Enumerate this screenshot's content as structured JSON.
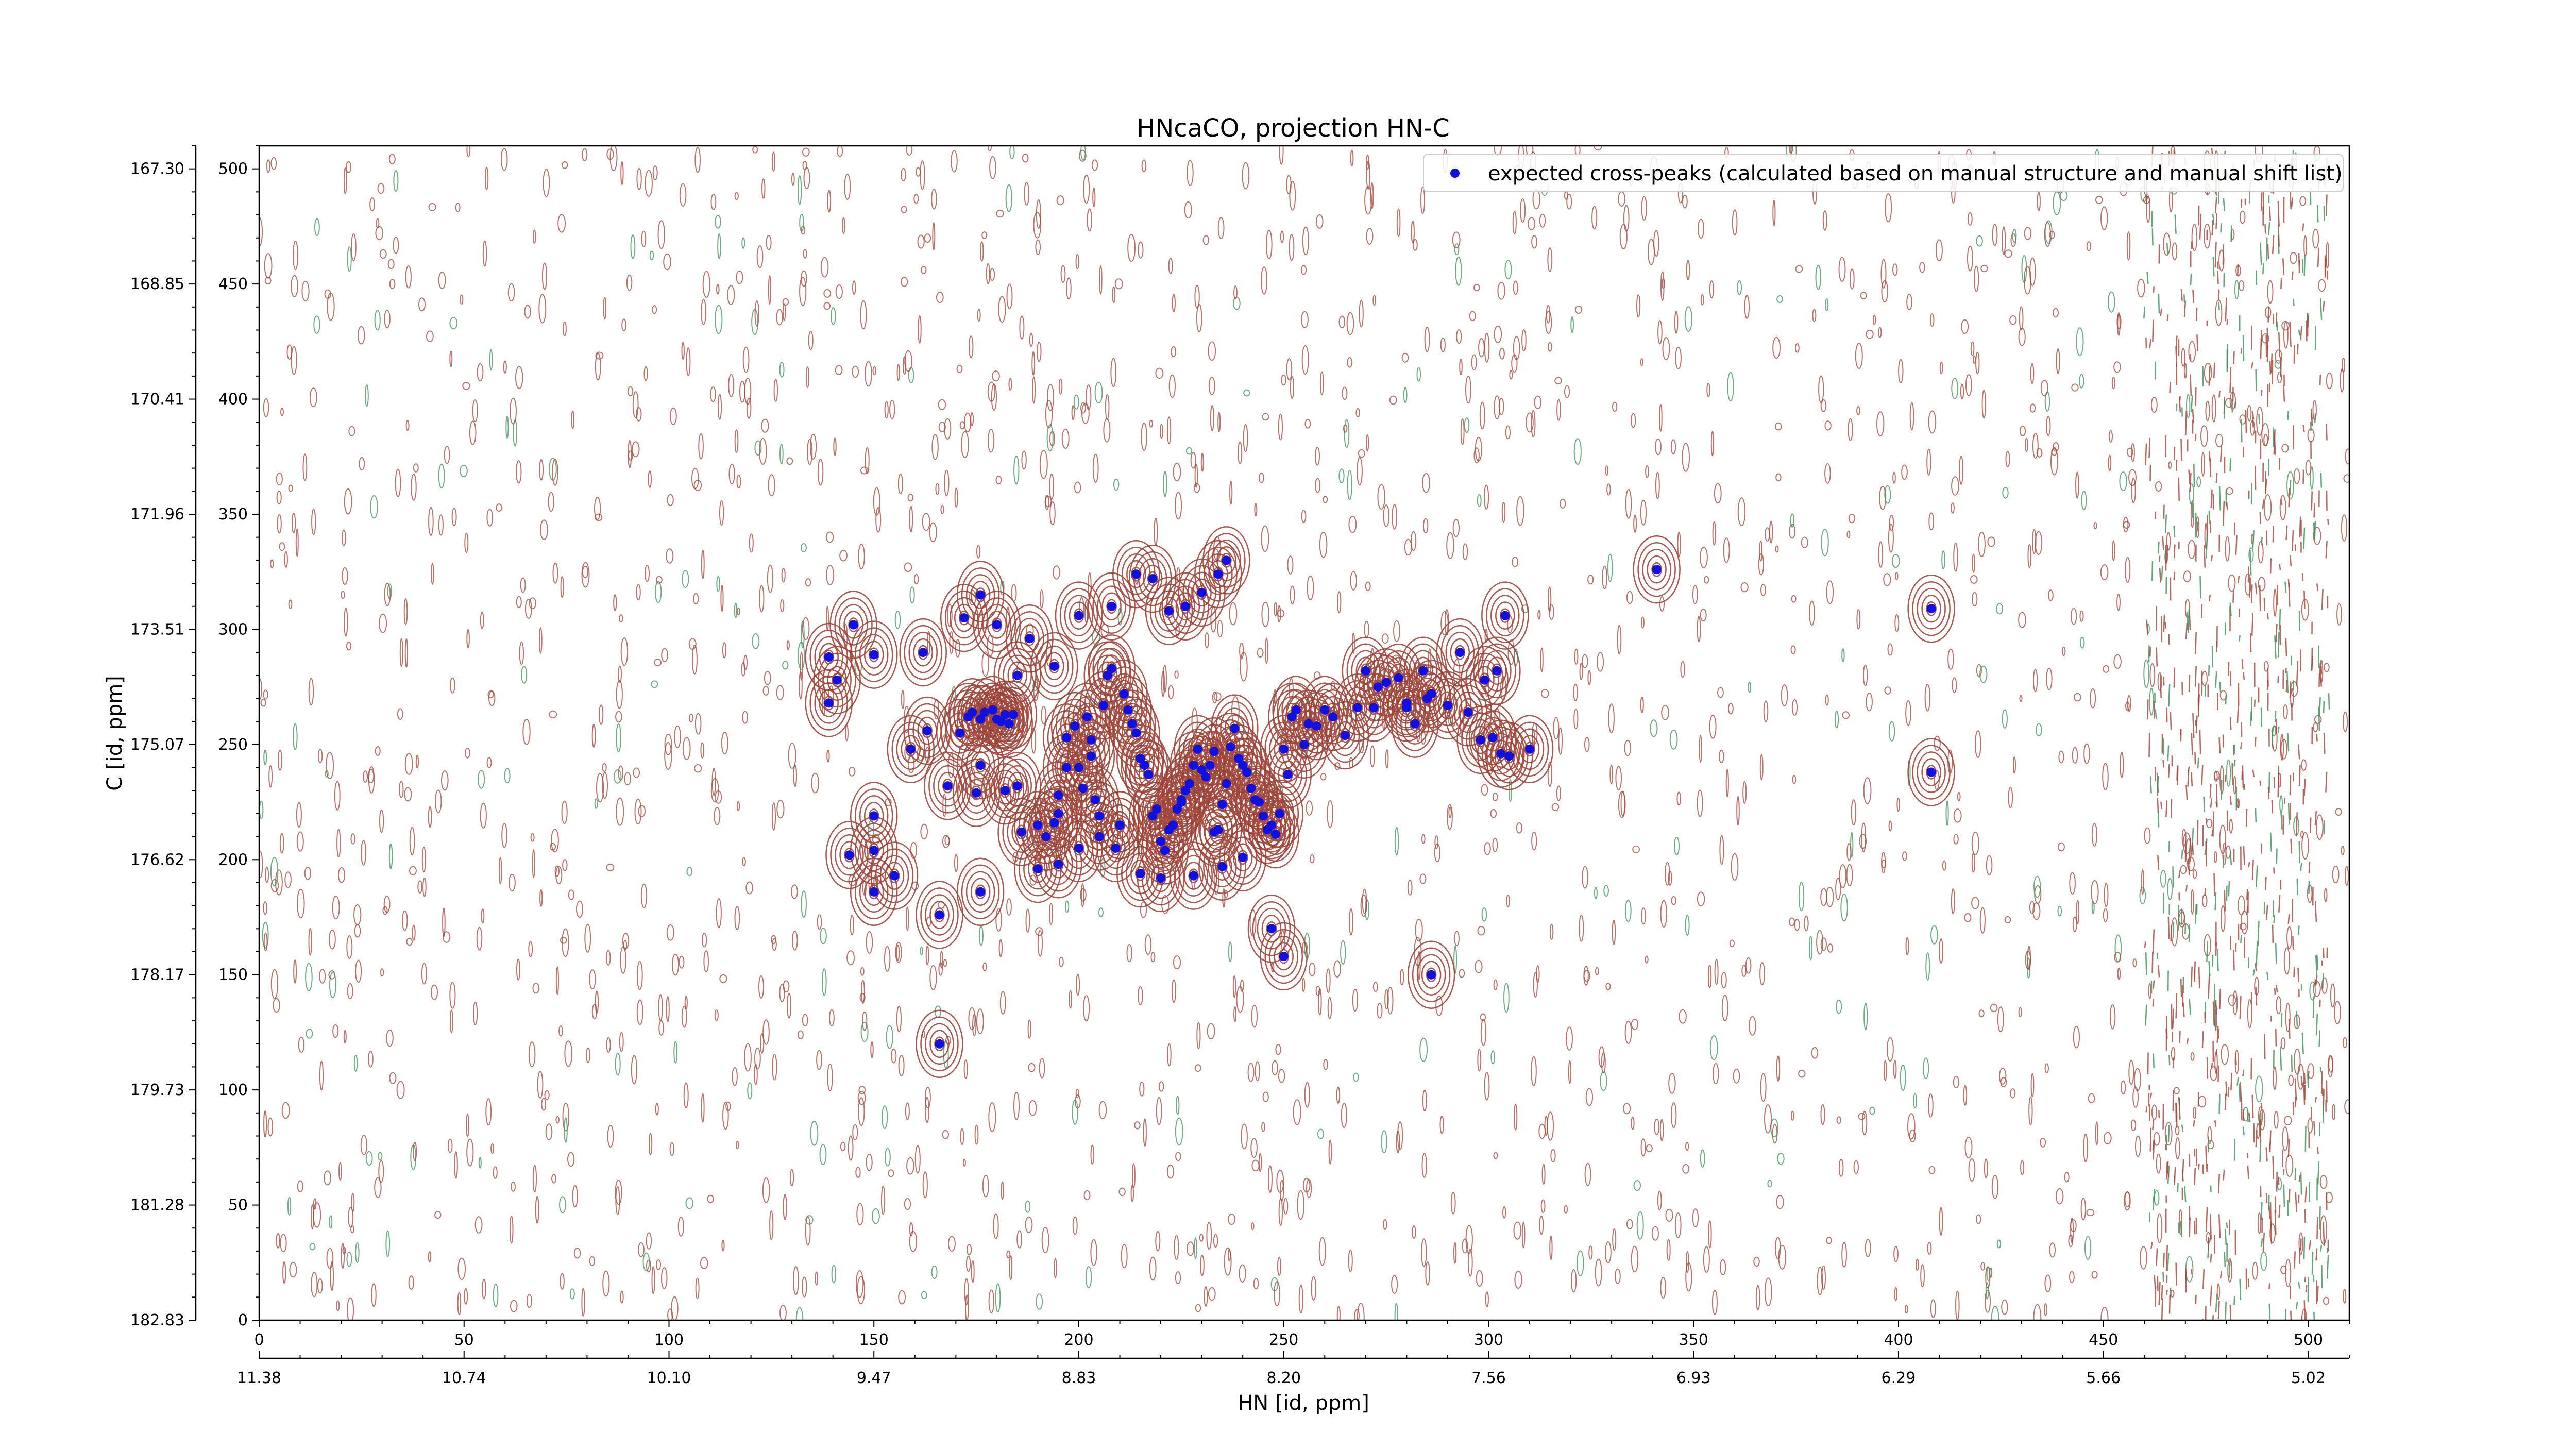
{
  "chart_data": {
    "type": "scatter",
    "title": "HNcaCO, projection HN-C",
    "xlabel": "HN [id, ppm]",
    "ylabel": "C [id, ppm]",
    "x_index_range": [
      0,
      510
    ],
    "y_index_range": [
      0,
      510
    ],
    "x_index_ticks": [
      0,
      50,
      100,
      150,
      200,
      250,
      300,
      350,
      400,
      450,
      500
    ],
    "y_index_ticks": [
      0,
      50,
      100,
      150,
      200,
      250,
      300,
      350,
      400,
      450,
      500
    ],
    "x_ppm_tick_labels": [
      "11.38",
      "10.74",
      "10.10",
      "9.47",
      "8.83",
      "8.20",
      "7.56",
      "6.93",
      "6.29",
      "5.66",
      "5.02"
    ],
    "y_ppm_tick_labels": [
      "182.83",
      "181.28",
      "179.73",
      "178.17",
      "176.62",
      "175.07",
      "173.51",
      "171.96",
      "170.41",
      "168.85",
      "167.30"
    ],
    "legend": {
      "placement": "top-right",
      "entries": [
        "expected cross-peaks (calculated based on manual structure and manual shift list)"
      ]
    },
    "colors": {
      "positive_contour": "#a0453a",
      "negative_contour": "#3f8f5a",
      "marker": "#1010e0",
      "axis": "#000000"
    },
    "series": [
      {
        "name": "expected cross-peaks (calculated based on manual structure and manual shift list)",
        "x": [
          145,
          150,
          139,
          139,
          141,
          150,
          155,
          166,
          162,
          150,
          144,
          150,
          159,
          168,
          166,
          163,
          171,
          173,
          174,
          176,
          177,
          179,
          180,
          181,
          182,
          183,
          184,
          182,
          175,
          176,
          176,
          185,
          186,
          190,
          192,
          195,
          194,
          195,
          197,
          197,
          199,
          200,
          201,
          202,
          203,
          203,
          204,
          205,
          206,
          207,
          208,
          209,
          210,
          211,
          212,
          213,
          214,
          215,
          216,
          217,
          218,
          219,
          220,
          221,
          222,
          223,
          224,
          225,
          226,
          227,
          228,
          229,
          230,
          231,
          232,
          233,
          234,
          235,
          236,
          237,
          238,
          239,
          240,
          241,
          242,
          243,
          244,
          245,
          246,
          247,
          248,
          249,
          250,
          251,
          252,
          253,
          255,
          256,
          258,
          260,
          262,
          265,
          268,
          270,
          272,
          275,
          278,
          280,
          282,
          284,
          285,
          286,
          290,
          295,
          298,
          301,
          303,
          305,
          310,
          273,
          280,
          293,
          299,
          302,
          304,
          247,
          250,
          286,
          341,
          408,
          408,
          236,
          234,
          230,
          226,
          222,
          218,
          214,
          208,
          200,
          194,
          188,
          185,
          180,
          176,
          172,
          190,
          195,
          200,
          205,
          210,
          215,
          220,
          228,
          235,
          240,
          233,
          225
        ],
        "y": [
          302,
          289,
          288,
          268,
          278,
          204,
          193,
          176,
          290,
          219,
          202,
          186,
          248,
          232,
          120,
          256,
          255,
          262,
          264,
          261,
          264,
          265,
          261,
          260,
          263,
          259,
          263,
          230,
          229,
          241,
          186,
          232,
          212,
          196,
          210,
          220,
          216,
          228,
          240,
          253,
          258,
          240,
          231,
          262,
          245,
          252,
          226,
          219,
          267,
          280,
          283,
          205,
          215,
          272,
          265,
          259,
          255,
          244,
          241,
          237,
          219,
          222,
          208,
          204,
          213,
          215,
          222,
          225,
          230,
          233,
          241,
          248,
          239,
          236,
          241,
          247,
          213,
          224,
          233,
          249,
          257,
          244,
          241,
          238,
          231,
          226,
          225,
          219,
          213,
          215,
          211,
          220,
          248,
          237,
          262,
          265,
          250,
          259,
          258,
          265,
          262,
          254,
          266,
          282,
          266,
          277,
          279,
          266,
          259,
          282,
          270,
          272,
          267,
          264,
          252,
          253,
          246,
          245,
          248,
          275,
          268,
          290,
          278,
          282,
          306,
          170,
          158,
          150,
          326,
          309,
          238,
          330,
          324,
          316,
          310,
          308,
          322,
          324,
          310,
          306,
          284,
          296,
          280,
          302,
          315,
          305,
          215,
          198,
          205,
          210,
          215,
          194,
          192,
          193,
          197,
          201,
          212,
          226
        ]
      }
    ]
  }
}
